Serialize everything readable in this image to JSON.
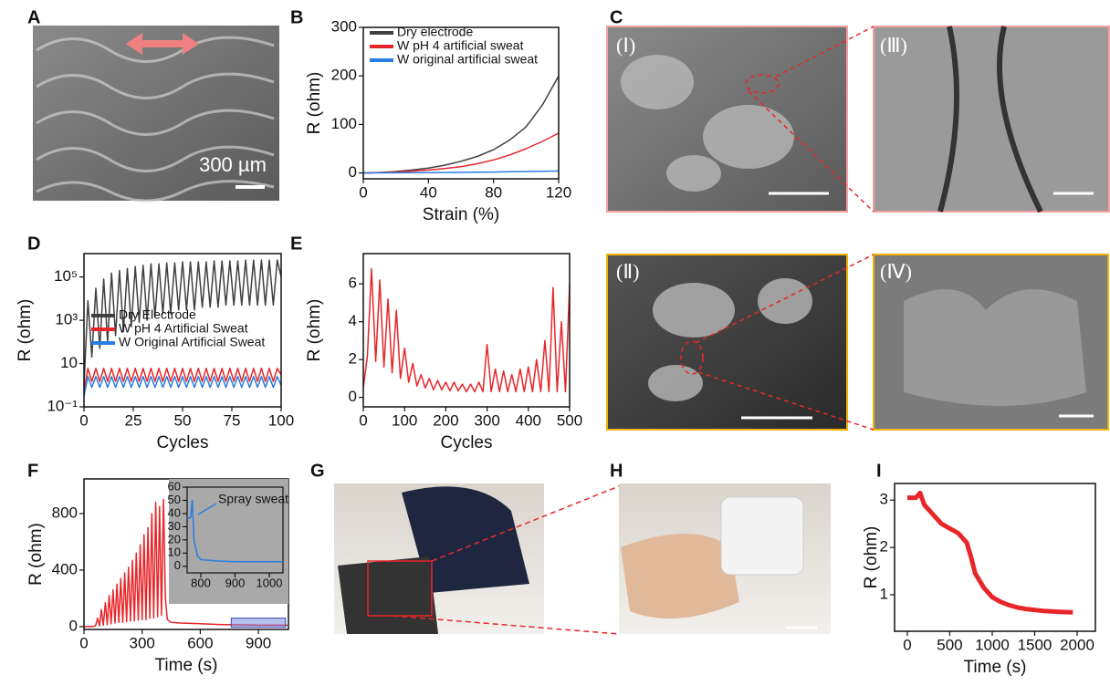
{
  "panels": [
    "A",
    "B",
    "C",
    "D",
    "E",
    "F",
    "G",
    "H",
    "I"
  ],
  "images": {
    "scale_label": "300 µm",
    "sem_labels": [
      "(Ⅰ)",
      "(Ⅱ)",
      "(Ⅲ)",
      "(Ⅳ)"
    ]
  },
  "chart_data": [
    {
      "type": "line",
      "xlabel": "Strain (%)",
      "ylabel": "R (ohm)",
      "x": [
        0,
        10,
        20,
        30,
        40,
        50,
        60,
        70,
        80,
        90,
        100,
        110,
        120
      ],
      "series": [
        {
          "name": "Dry electrode",
          "color": "#404040",
          "values": [
            0,
            1,
            3,
            6,
            10,
            16,
            24,
            34,
            48,
            68,
            95,
            140,
            200
          ]
        },
        {
          "name": "W pH 4 artificial sweat",
          "color": "#e8262a",
          "values": [
            0,
            1,
            2,
            4,
            6,
            9,
            13,
            19,
            27,
            37,
            50,
            65,
            82
          ]
        },
        {
          "name": "W original artificial sweat",
          "color": "#2a7de1",
          "values": [
            0,
            0.2,
            0.4,
            0.6,
            0.8,
            1,
            1.3,
            1.6,
            2,
            2.5,
            3,
            3.5,
            4
          ]
        }
      ],
      "xlim": [
        0,
        120
      ],
      "xticks": [
        0,
        40,
        80,
        120
      ],
      "ylim": [
        -12,
        300
      ],
      "yticks": [
        0,
        100,
        200,
        300
      ],
      "legend": "upper left"
    },
    {
      "type": "line",
      "xlabel": "Cycles",
      "ylabel": "R (ohm)",
      "log_y": true,
      "x": [
        0,
        2,
        4,
        6,
        8,
        10,
        12,
        14,
        16,
        18,
        20,
        22,
        24,
        26,
        28,
        30,
        32,
        34,
        36,
        38,
        40,
        42,
        44,
        46,
        48,
        50,
        52,
        54,
        56,
        58,
        60,
        62,
        64,
        66,
        68,
        70,
        72,
        74,
        76,
        78,
        80,
        82,
        84,
        86,
        88,
        90,
        92,
        94,
        96,
        98,
        100
      ],
      "series": [
        {
          "name": "Dry Electrode",
          "color": "#404040",
          "values": [
            1,
            8000,
            20,
            30000,
            50,
            80000,
            100,
            150000,
            200,
            200000,
            300,
            250000,
            500,
            300000,
            800,
            350000,
            1000,
            400000,
            1500,
            400000,
            2000,
            450000,
            2000,
            450000,
            3000,
            500000,
            3000,
            500000,
            3000,
            500000,
            4000,
            500000,
            4000,
            550000,
            4000,
            550000,
            5000,
            550000,
            5000,
            550000,
            5000,
            600000,
            5000,
            600000,
            5000,
            600000,
            5000,
            600000,
            5000,
            600000,
            100000
          ]
        },
        {
          "name": "W pH 4 Artificial Sweat",
          "color": "#e8262a",
          "values": [
            0.5,
            6,
            1.5,
            6,
            1.5,
            6,
            1.5,
            6,
            1.5,
            6,
            1.5,
            6,
            1.5,
            6,
            1.5,
            6,
            1.5,
            6,
            1.5,
            6,
            1.5,
            6,
            1.5,
            6,
            1.5,
            6,
            1.5,
            6,
            1.5,
            6,
            1.5,
            6,
            1.5,
            6,
            1.5,
            6,
            1.5,
            6,
            1.5,
            6,
            1.5,
            6,
            1.5,
            6,
            1.5,
            6,
            1.5,
            6,
            1.5,
            6,
            3
          ]
        },
        {
          "name": "W Original Artificial Sweat",
          "color": "#2a7de1",
          "values": [
            0.3,
            2.5,
            0.8,
            2.5,
            0.8,
            2.5,
            0.8,
            2.5,
            0.8,
            2.5,
            0.8,
            2.5,
            0.8,
            2.5,
            0.8,
            2.5,
            0.8,
            2.5,
            0.8,
            2.5,
            0.8,
            2.5,
            0.8,
            2.5,
            0.8,
            2.5,
            0.8,
            2.5,
            0.8,
            2.5,
            0.8,
            2.5,
            0.8,
            2.5,
            0.8,
            2.5,
            0.8,
            2.5,
            0.8,
            2.5,
            0.8,
            2.5,
            0.8,
            2.5,
            0.8,
            2.5,
            0.8,
            2.5,
            0.8,
            2.5,
            1
          ]
        }
      ],
      "xlim": [
        0,
        100
      ],
      "xticks": [
        0,
        25,
        50,
        75,
        100
      ],
      "ylim": [
        0.1,
        1200000
      ],
      "yticks": [
        {
          "value": 0.1,
          "label": "10⁻¹"
        },
        10,
        {
          "value": 1000,
          "label": "10³"
        },
        {
          "value": 100000,
          "label": "10⁵"
        }
      ],
      "legend": "center left"
    },
    {
      "type": "line",
      "xlabel": "Cycles",
      "ylabel": "R (ohm)",
      "x": [
        0,
        10,
        20,
        30,
        40,
        50,
        60,
        70,
        80,
        90,
        100,
        110,
        120,
        130,
        140,
        150,
        160,
        170,
        180,
        190,
        200,
        210,
        220,
        230,
        240,
        250,
        260,
        270,
        280,
        290,
        300,
        310,
        320,
        330,
        340,
        350,
        360,
        370,
        380,
        390,
        400,
        410,
        420,
        430,
        440,
        450,
        460,
        470,
        480,
        490,
        500
      ],
      "series": [
        {
          "color": "#e8262a",
          "values": [
            0.5,
            2.2,
            6.8,
            1.9,
            6.2,
            1.6,
            5.2,
            1.3,
            4.6,
            1.0,
            2.6,
            0.8,
            1.8,
            0.6,
            1.2,
            0.5,
            1.0,
            0.4,
            0.9,
            0.4,
            0.8,
            0.35,
            0.8,
            0.35,
            0.7,
            0.3,
            0.7,
            0.3,
            0.8,
            0.3,
            2.8,
            0.3,
            1.5,
            0.3,
            1.4,
            0.3,
            1.2,
            0.3,
            1.5,
            0.3,
            1.6,
            0.3,
            2.0,
            0.3,
            3.0,
            0.3,
            5.8,
            0.3,
            4.0,
            0.3,
            6.0
          ]
        }
      ],
      "xlim": [
        0,
        500
      ],
      "xticks": [
        0,
        100,
        200,
        300,
        400,
        500
      ],
      "ylim": [
        -0.5,
        7.6
      ],
      "yticks": [
        0,
        2,
        4,
        6
      ]
    },
    {
      "type": "line",
      "xlabel": "Time (s)",
      "ylabel": "R (ohm)",
      "x": [
        0,
        20,
        40,
        60,
        70,
        80,
        90,
        100,
        110,
        120,
        130,
        140,
        150,
        160,
        170,
        180,
        190,
        200,
        210,
        220,
        230,
        240,
        250,
        260,
        270,
        280,
        290,
        300,
        310,
        320,
        330,
        340,
        350,
        360,
        370,
        380,
        390,
        400,
        410,
        420,
        430,
        450,
        500,
        600,
        700,
        800,
        900,
        1000,
        1050
      ],
      "series": [
        {
          "color": "#e8262a",
          "values": [
            0,
            0,
            0,
            5,
            60,
            5,
            120,
            10,
            170,
            15,
            220,
            20,
            260,
            25,
            300,
            30,
            340,
            30,
            380,
            35,
            420,
            40,
            470,
            40,
            520,
            45,
            580,
            50,
            650,
            50,
            700,
            60,
            800,
            60,
            880,
            70,
            850,
            80,
            900,
            200,
            50,
            30,
            25,
            20,
            15,
            12,
            10,
            10,
            10
          ]
        }
      ],
      "xlim": [
        0,
        1055
      ],
      "xticks": [
        0,
        300,
        600,
        900
      ],
      "ylim": [
        -20,
        1045
      ],
      "yticks": [
        0,
        400,
        800
      ]
    },
    {
      "type": "line",
      "annotation": "Spray sweat",
      "x": [
        760,
        770,
        775,
        780,
        790,
        800,
        850,
        900,
        950,
        1000,
        1040
      ],
      "series": [
        {
          "color": "#2a7de1",
          "values": [
            36,
            37,
            50,
            20,
            8,
            5,
            4,
            3.5,
            3.5,
            3.5,
            3.5
          ]
        }
      ],
      "xlim": [
        760,
        1040
      ],
      "xticks": [
        800,
        900,
        1000
      ],
      "ylim": [
        -5,
        60
      ],
      "yticks": [
        0,
        10,
        20,
        30,
        40,
        50,
        60
      ]
    },
    {
      "type": "line",
      "xlabel": "Time (s)",
      "ylabel": "R (ohm)",
      "x": [
        0,
        100,
        150,
        200,
        300,
        400,
        500,
        600,
        700,
        750,
        800,
        900,
        1000,
        1100,
        1200,
        1300,
        1400,
        1600,
        1800,
        1950
      ],
      "series": [
        {
          "color": "#e8262a",
          "values": [
            3.05,
            3.05,
            3.15,
            2.9,
            2.7,
            2.5,
            2.4,
            2.3,
            2.1,
            1.8,
            1.45,
            1.15,
            0.95,
            0.85,
            0.78,
            0.73,
            0.7,
            0.66,
            0.64,
            0.63
          ]
        }
      ],
      "xlim": [
        -150,
        2215
      ],
      "xticks": [
        0,
        500,
        1000,
        1500,
        2000
      ],
      "ylim": [
        0.23,
        3.35
      ],
      "yticks": [
        1,
        2,
        3
      ]
    }
  ]
}
